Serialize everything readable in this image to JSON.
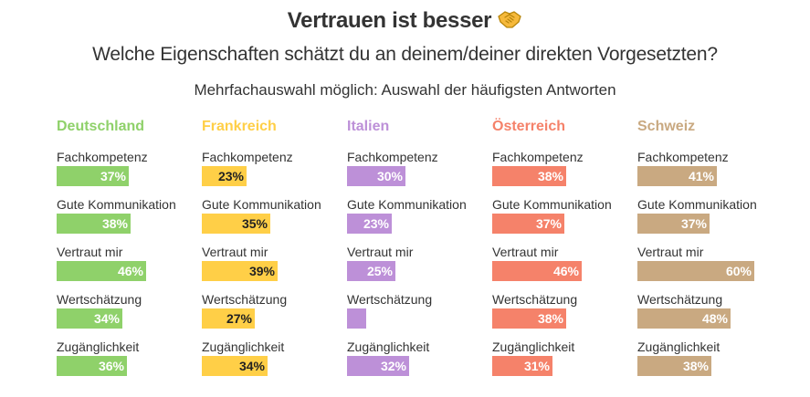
{
  "header": {
    "title": "Vertrauen ist besser",
    "subtitle": "Welche Eigenschaften schätzt du an deinem/deiner direkten Vorgesetzten?",
    "note": "Mehrfachauswahl möglich: Auswahl der häufigsten Antworten"
  },
  "chart_data": {
    "type": "bar",
    "title": "Vertrauen ist besser",
    "subtitle": "Welche Eigenschaften schätzt du an deinem/deiner direkten Vorgesetzten?",
    "note": "Mehrfachauswahl möglich: Auswahl der häufigsten Antworten",
    "title_icon": "handshake-icon",
    "categories": [
      "Fachkompetenz",
      "Gute Kommunikation",
      "Vertraut mir",
      "Wertschätzung",
      "Zugänglichkeit"
    ],
    "unit": "%",
    "series": [
      {
        "name": "Deutschland",
        "color": "#8fd16a",
        "label_color": "light",
        "values": [
          37,
          38,
          46,
          34,
          36
        ],
        "labels": [
          "37%",
          "38%",
          "46%",
          "34%",
          "36%"
        ]
      },
      {
        "name": "Frankreich",
        "color": "#ffcf47",
        "label_color": "dark",
        "values": [
          23,
          35,
          39,
          27,
          34
        ],
        "labels": [
          "23%",
          "35%",
          "39%",
          "27%",
          "34%"
        ]
      },
      {
        "name": "Italien",
        "color": "#bd90d8",
        "label_color": "light",
        "values": [
          30,
          23,
          25,
          10,
          32
        ],
        "labels": [
          "30%",
          "23%",
          "25%",
          "",
          "32%"
        ]
      },
      {
        "name": "Österreich",
        "color": "#f5826a",
        "label_color": "light",
        "values": [
          38,
          37,
          46,
          38,
          31
        ],
        "labels": [
          "38%",
          "37%",
          "46%",
          "38%",
          "31%"
        ]
      },
      {
        "name": "Schweiz",
        "color": "#c9a981",
        "label_color": "light",
        "values": [
          41,
          37,
          60,
          48,
          38
        ],
        "labels": [
          "41%",
          "37%",
          "60%",
          "48%",
          "38%"
        ]
      }
    ]
  }
}
